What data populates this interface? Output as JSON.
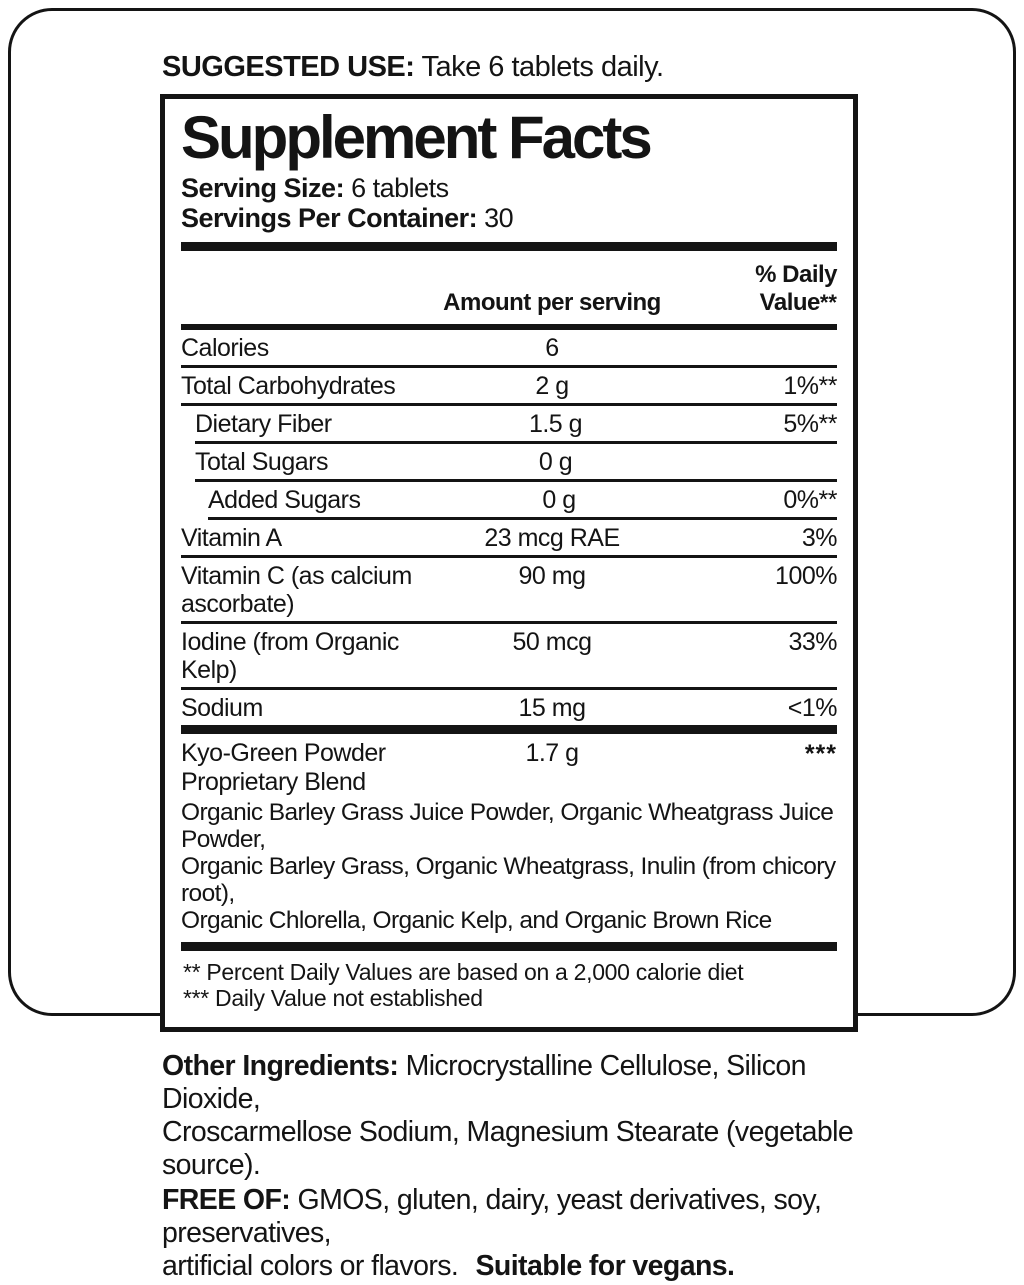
{
  "suggested_use": {
    "label": "SUGGESTED USE:",
    "text": "Take 6 tablets daily."
  },
  "panel": {
    "title": "Supplement Facts",
    "serving_size": {
      "label": "Serving Size:",
      "value": "6 tablets"
    },
    "servings_per_container": {
      "label": "Servings Per Container:",
      "value": "30"
    },
    "columns": {
      "amount": "Amount per serving",
      "dv": "% Daily Value",
      "dv_asterisks": "**"
    },
    "rows": [
      {
        "name": "Calories",
        "amount": "6",
        "dv": "",
        "indent": 0
      },
      {
        "name": "Total Carbohydrates",
        "amount": "2 g",
        "dv": "1%**",
        "indent": 0
      },
      {
        "name": "Dietary Fiber",
        "amount": "1.5 g",
        "dv": "5%**",
        "indent": 1
      },
      {
        "name": "Total Sugars",
        "amount": "0 g",
        "dv": "",
        "indent": 1
      },
      {
        "name": "Added Sugars",
        "amount": "0 g",
        "dv": "0%**",
        "indent": 2
      },
      {
        "name": "Vitamin A",
        "amount": "23 mcg RAE",
        "dv": "3%",
        "indent": 0
      },
      {
        "name": "Vitamin C (as calcium ascorbate)",
        "amount": "90 mg",
        "dv": "100%",
        "indent": 0
      },
      {
        "name": "Iodine (from Organic Kelp)",
        "amount": "50 mcg",
        "dv": "33%",
        "indent": 0
      },
      {
        "name": "Sodium",
        "amount": "15 mg",
        "dv": "<1%",
        "indent": 0
      }
    ],
    "blend": {
      "name": "Kyo-Green Powder Proprietary Blend",
      "amount": "1.7 g",
      "dv": "***",
      "description_lines": {
        "line1": "Organic Barley Grass Juice Powder, Organic Wheatgrass Juice Powder,",
        "line2": "Organic Barley Grass, Organic Wheatgrass, Inulin (from chicory root),",
        "line3": "Organic Chlorella, Organic Kelp, and Organic Brown Rice"
      }
    },
    "footnotes": {
      "line1": "** Percent Daily Values are based on a 2,000 calorie diet",
      "line2": "*** Daily Value not established"
    }
  },
  "other_ingredients": {
    "label": "Other Ingredients:",
    "line1": "Microcrystalline Cellulose, Silicon Dioxide,",
    "line2": "Croscarmellose Sodium, Magnesium Stearate (vegetable source)."
  },
  "free_of": {
    "label": "FREE OF:",
    "line1": "GMOS, gluten, dairy, yeast derivatives, soy, preservatives,",
    "line2": "artificial colors or flavors.",
    "suffix": "Suitable for vegans."
  }
}
